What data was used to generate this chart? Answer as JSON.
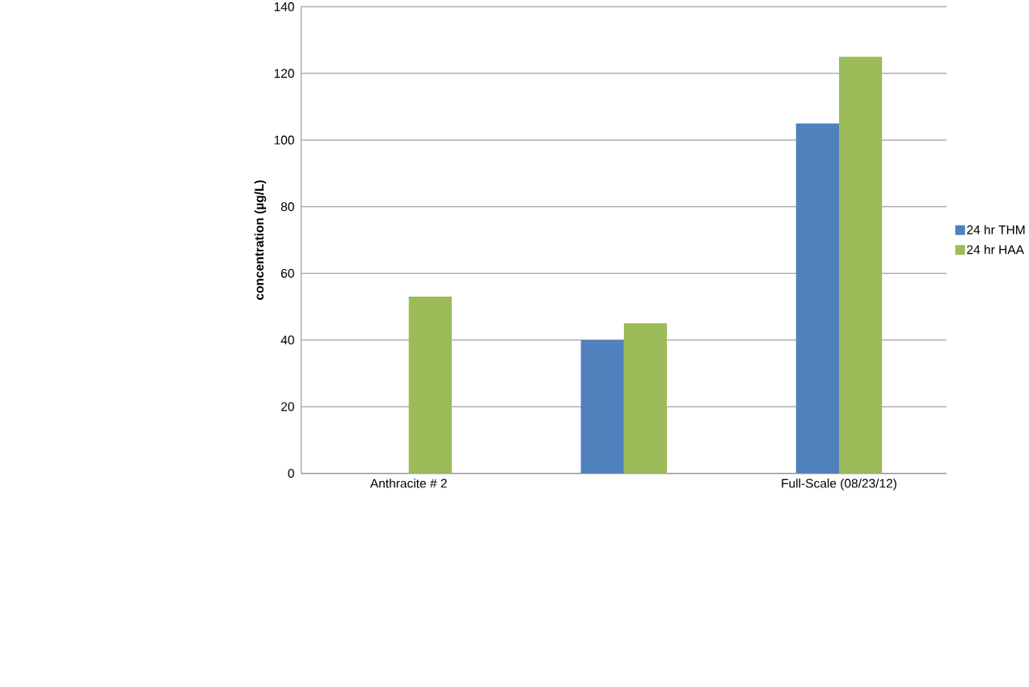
{
  "chart_data": {
    "type": "bar",
    "ylabel": "concentration (µg/L)",
    "categories": [
      "Anthracite # 2",
      null,
      "Full-Scale (08/23/12)"
    ],
    "series": [
      {
        "name": "24 hr THM",
        "color": "#4f81bd",
        "values": [
          null,
          40,
          105
        ]
      },
      {
        "name": "24 hr HAA",
        "color": "#9bbb59",
        "values": [
          53,
          45,
          125
        ]
      }
    ],
    "ylim": [
      0,
      140
    ],
    "yticks": [
      0,
      20,
      40,
      60,
      80,
      100,
      120,
      140
    ],
    "grid": "y",
    "legend": "right"
  }
}
